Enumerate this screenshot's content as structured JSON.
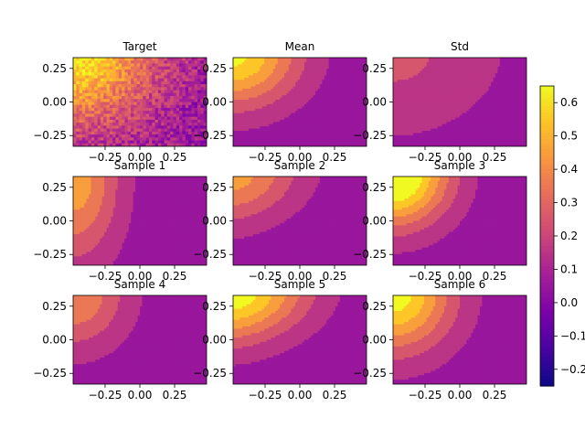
{
  "chart_data": {
    "type": "heatmap",
    "colormap": "plasma",
    "xlim": [
      -0.48,
      0.48
    ],
    "ylim": [
      -0.33,
      0.33
    ],
    "x_ticks": [
      -0.25,
      0.0,
      0.25
    ],
    "x_tick_labels": [
      "−0.25",
      "0.00",
      "0.25"
    ],
    "y_ticks": [
      -0.25,
      0.0,
      0.25
    ],
    "y_tick_labels": [
      "−0.25",
      "0.00",
      "0.25"
    ],
    "colorbar": {
      "range": [
        -0.25,
        0.65
      ],
      "ticks": [
        0.6,
        0.5,
        0.4,
        0.3,
        0.2,
        0.1,
        0.0,
        -0.1,
        -0.2
      ],
      "tick_labels": [
        "0.6",
        "0.5",
        "0.4",
        "0.3",
        "0.2",
        "0.1",
        "0.0",
        "−0.1",
        "−0.2"
      ]
    },
    "panels": [
      {
        "title": "Target",
        "kind": "noise",
        "amp": 0.55,
        "cx": -0.46,
        "cy": 0.33,
        "rx": 0.85,
        "ry": 0.75,
        "tilt": 0.1,
        "base": 0.05
      },
      {
        "title": "Mean",
        "kind": "contour",
        "amp": 0.58,
        "cx": -0.47,
        "cy": 0.34,
        "rx": 0.68,
        "ry": 0.55,
        "tilt": 0.1,
        "base": 0.04
      },
      {
        "title": "Std",
        "kind": "contour",
        "amp": 0.16,
        "cx": -0.45,
        "cy": 0.34,
        "rx": 0.95,
        "ry": 0.75,
        "tilt": 0.15,
        "base": 0.06
      },
      {
        "title": "Sample 1",
        "kind": "contour",
        "amp": 0.42,
        "cx": -0.47,
        "cy": 0.3,
        "rx": 0.46,
        "ry": 0.85,
        "tilt": 0.0,
        "base": 0.04
      },
      {
        "title": "Sample 2",
        "kind": "contour",
        "amp": 0.4,
        "cx": -0.48,
        "cy": 0.34,
        "rx": 0.72,
        "ry": 0.52,
        "tilt": 0.25,
        "base": 0.04
      },
      {
        "title": "Sample 3",
        "kind": "contour",
        "amp": 0.75,
        "cx": -0.48,
        "cy": 0.34,
        "rx": 0.58,
        "ry": 0.55,
        "tilt": 0.15,
        "base": 0.04
      },
      {
        "title": "Sample 4",
        "kind": "contour",
        "amp": 0.36,
        "cx": -0.48,
        "cy": 0.34,
        "rx": 0.55,
        "ry": 0.58,
        "tilt": 0.0,
        "base": 0.04
      },
      {
        "title": "Sample 5",
        "kind": "contour",
        "amp": 0.62,
        "cx": -0.47,
        "cy": 0.34,
        "rx": 0.78,
        "ry": 0.52,
        "tilt": 0.2,
        "base": 0.04
      },
      {
        "title": "Sample 6",
        "kind": "contour",
        "amp": 0.62,
        "cx": -0.48,
        "cy": 0.34,
        "rx": 0.62,
        "ry": 0.62,
        "tilt": 0.05,
        "base": 0.04
      }
    ]
  }
}
